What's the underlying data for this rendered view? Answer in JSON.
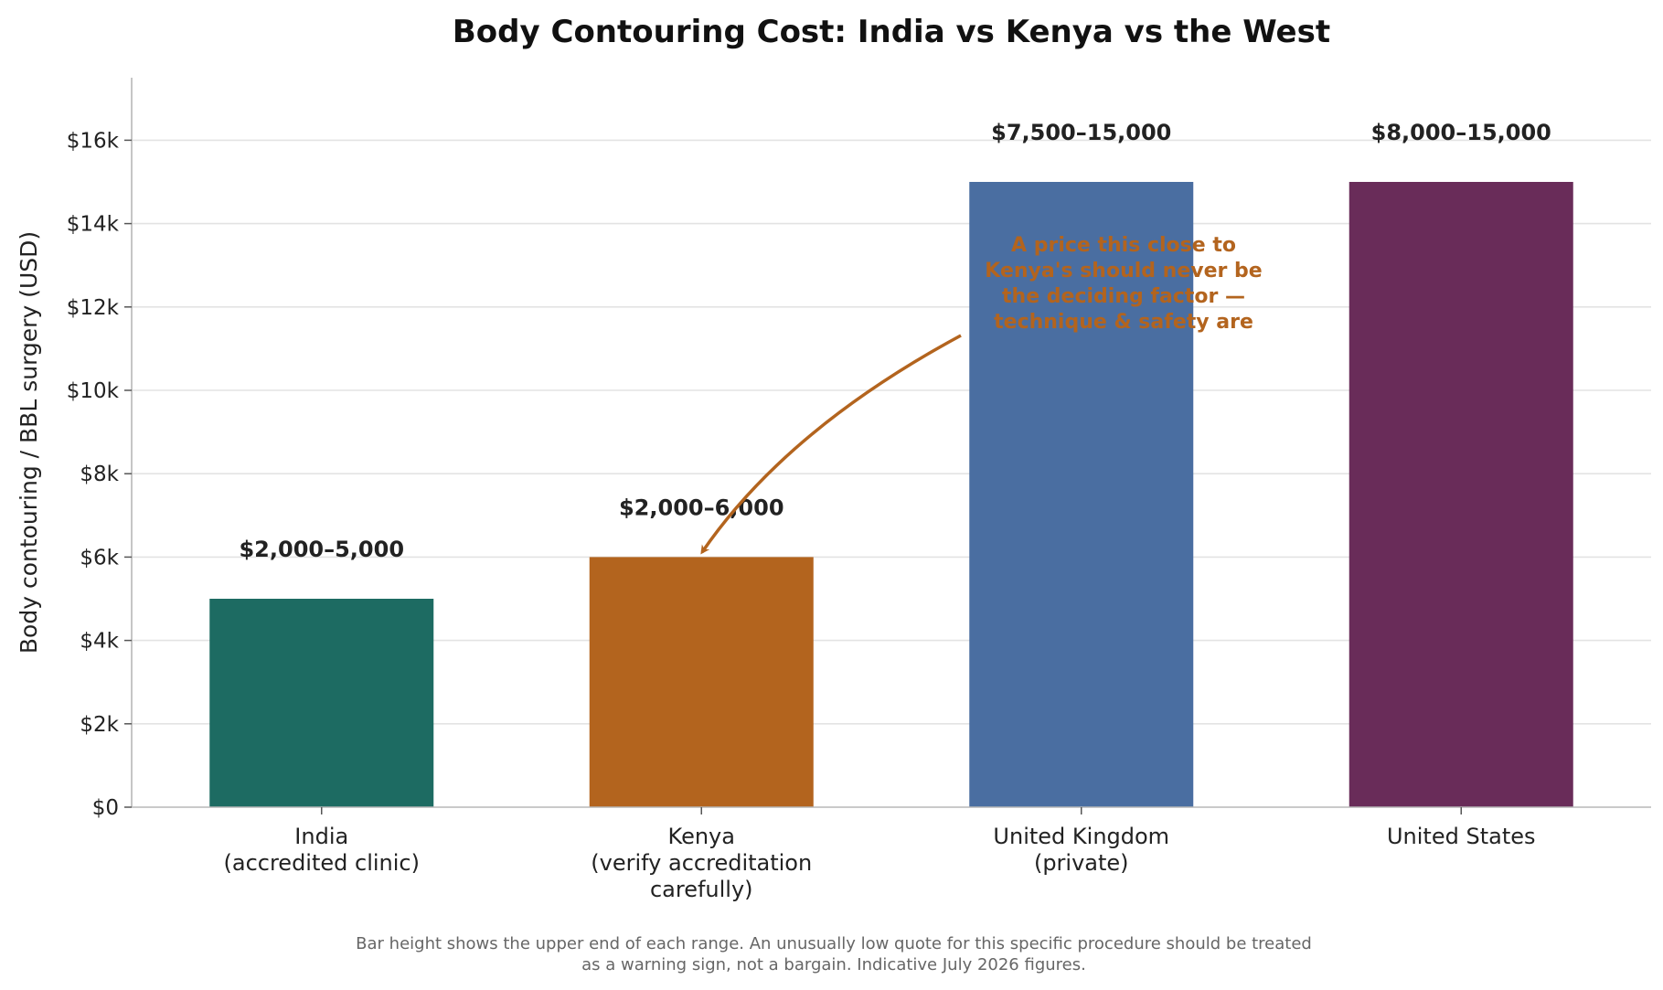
{
  "colors": {
    "india": "#1d6b62",
    "kenya": "#b3641e",
    "uk": "#4a6ea1",
    "us": "#692c59",
    "annotation": "#b3641e",
    "grid": "#e3e3e3"
  },
  "chart_data": {
    "type": "bar",
    "title": "Body Contouring Cost: India vs Kenya vs the West",
    "xlabel": "",
    "ylabel": "Body contouring / BBL surgery (USD)",
    "ylim": [
      0,
      17500
    ],
    "grid": "horizontal",
    "yticks": [
      0,
      2000,
      4000,
      6000,
      8000,
      10000,
      12000,
      14000,
      16000
    ],
    "ytick_labels": [
      "$0",
      "$2k",
      "$4k",
      "$6k",
      "$8k",
      "$10k",
      "$12k",
      "$14k",
      "$16k"
    ],
    "categories": [
      [
        "India",
        "(accredited clinic)"
      ],
      [
        "Kenya",
        "(verify accreditation",
        "carefully)"
      ],
      [
        "United Kingdom",
        "(private)"
      ],
      [
        "United States"
      ]
    ],
    "values": [
      5000,
      6000,
      15000,
      15000
    ],
    "data_labels": [
      "$2,000–5,000",
      "$2,000–6,000",
      "$7,500–15,000",
      "$8,000–15,000"
    ],
    "bar_colors": [
      "#1d6b62",
      "#b3641e",
      "#4a6ea1",
      "#692c59"
    ],
    "annotation": {
      "lines": [
        "A price this close to",
        "Kenya's should never be",
        "the deciding factor —",
        "technique & safety are"
      ],
      "points_to_category": "Kenya",
      "color": "#b3641e"
    },
    "footnote": [
      "Bar height shows the upper end of each range. An unusually low quote for this specific procedure should be treated",
      "as a warning sign, not a bargain. Indicative July 2026 figures."
    ]
  }
}
